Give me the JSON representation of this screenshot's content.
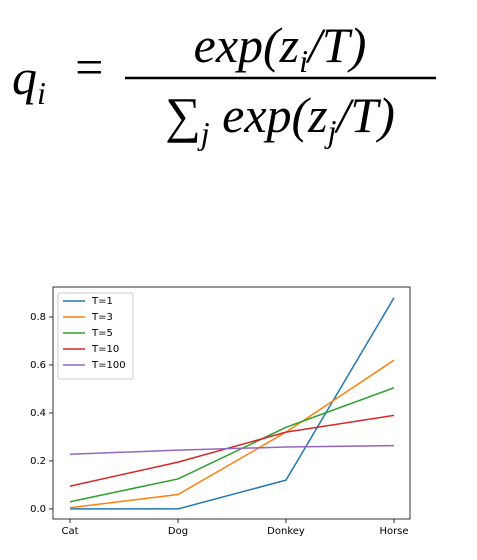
{
  "formula": {
    "lhs": "q",
    "lhs_index": "i",
    "equals": "=",
    "numerator": [
      "exp(z",
      "i",
      "/T)"
    ],
    "denominator": [
      "∑",
      "j",
      " exp(z",
      "j",
      "/T)"
    ]
  },
  "chart_data": {
    "type": "line",
    "categories": [
      "Cat",
      "Dog",
      "Donkey",
      "Horse"
    ],
    "series": [
      {
        "name": "T=1",
        "color": "#1f77b4",
        "values": [
          0.0,
          0.0,
          0.12,
          0.88
        ]
      },
      {
        "name": "T=3",
        "color": "#ff7f0e",
        "values": [
          0.005,
          0.06,
          0.32,
          0.62
        ]
      },
      {
        "name": "T=5",
        "color": "#2ca02c",
        "values": [
          0.03,
          0.125,
          0.34,
          0.505
        ]
      },
      {
        "name": "T=10",
        "color": "#d62728",
        "values": [
          0.095,
          0.195,
          0.32,
          0.39
        ]
      },
      {
        "name": "T=100",
        "color": "#9467bd",
        "values": [
          0.228,
          0.245,
          0.258,
          0.264
        ]
      }
    ],
    "ylim": [
      -0.042,
      0.925
    ],
    "yticks": [
      {
        "value": 0,
        "label": "0.0"
      },
      0.2,
      0.4,
      0.6,
      0.8
    ],
    "legend": "upper left",
    "grid": false
  }
}
